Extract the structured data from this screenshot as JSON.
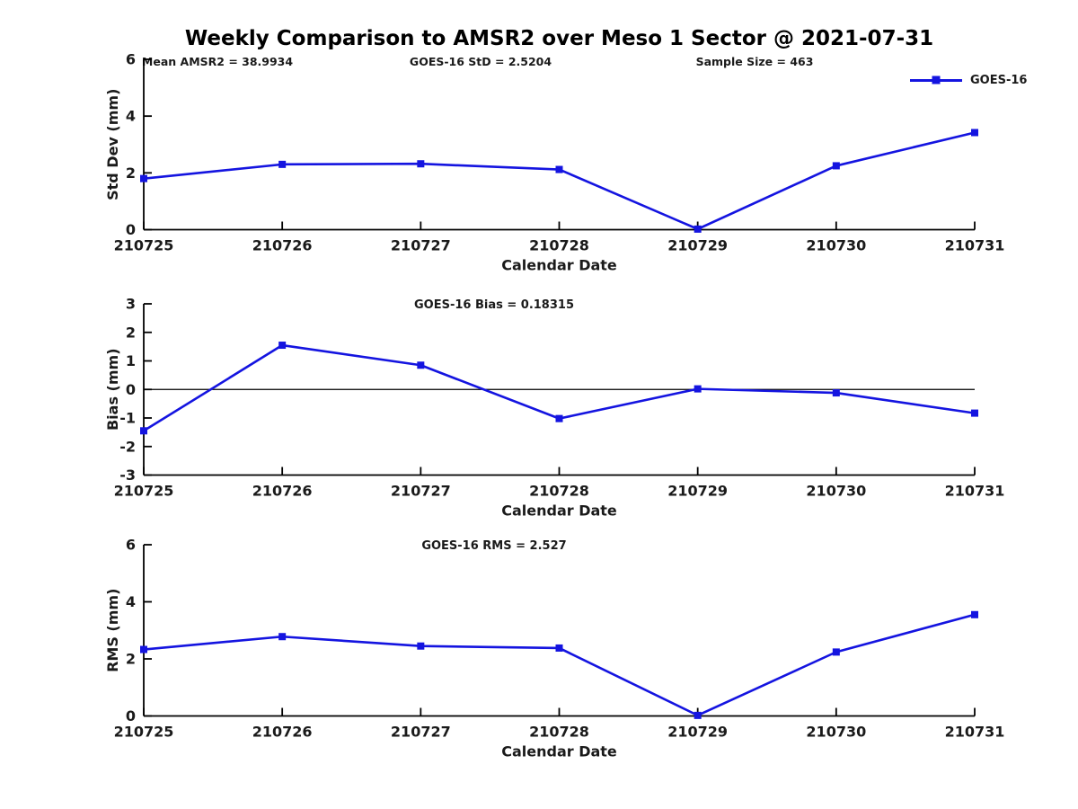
{
  "title": "Weekly Comparison to AMSR2 over Meso 1 Sector @ 2021-07-31",
  "annotations": {
    "mean_amsr2": "Mean AMSR2 = 38.9934",
    "goes16_std": "GOES-16 StD = 2.5204",
    "sample_size": "Sample Size = 463"
  },
  "legend": {
    "label": "GOES-16"
  },
  "colors": {
    "line": "#1414e0",
    "axis": "#000000",
    "text": "#1a1a1a",
    "zero_line": "#000000",
    "background": "#ffffff"
  },
  "chart_data": [
    {
      "type": "line",
      "title": "",
      "xlabel": "Calendar Date",
      "ylabel": "Std Dev (mm)",
      "categories": [
        "210725",
        "210726",
        "210727",
        "210728",
        "210729",
        "210730",
        "210731"
      ],
      "series": [
        {
          "name": "GOES-16",
          "values": [
            1.8,
            2.3,
            2.32,
            2.12,
            0.02,
            2.25,
            3.42
          ]
        }
      ],
      "ylim": [
        0,
        6
      ],
      "yticks": [
        0,
        2,
        4,
        6
      ],
      "zero_line": false,
      "grid": false,
      "legend_position": "top-right-outside",
      "marker": "square"
    },
    {
      "type": "line",
      "title": "GOES-16 Bias  = 0.18315",
      "xlabel": "Calendar Date",
      "ylabel": "Bias (mm)",
      "categories": [
        "210725",
        "210726",
        "210727",
        "210728",
        "210729",
        "210730",
        "210731"
      ],
      "series": [
        {
          "name": "GOES-16",
          "values": [
            -1.45,
            1.55,
            0.85,
            -1.02,
            0.02,
            -0.12,
            -0.83
          ]
        }
      ],
      "ylim": [
        -3,
        3
      ],
      "yticks": [
        -3,
        -2,
        -1,
        0,
        1,
        2,
        3
      ],
      "zero_line": true,
      "grid": false,
      "marker": "square"
    },
    {
      "type": "line",
      "title": "GOES-16 RMS = 2.527",
      "xlabel": "Calendar Date",
      "ylabel": "RMS (mm)",
      "categories": [
        "210725",
        "210726",
        "210727",
        "210728",
        "210729",
        "210730",
        "210731"
      ],
      "series": [
        {
          "name": "GOES-16",
          "values": [
            2.33,
            2.78,
            2.45,
            2.38,
            0.02,
            2.24,
            3.55
          ]
        }
      ],
      "ylim": [
        0,
        6
      ],
      "yticks": [
        0,
        2,
        4,
        6
      ],
      "zero_line": false,
      "grid": false,
      "marker": "square"
    }
  ]
}
